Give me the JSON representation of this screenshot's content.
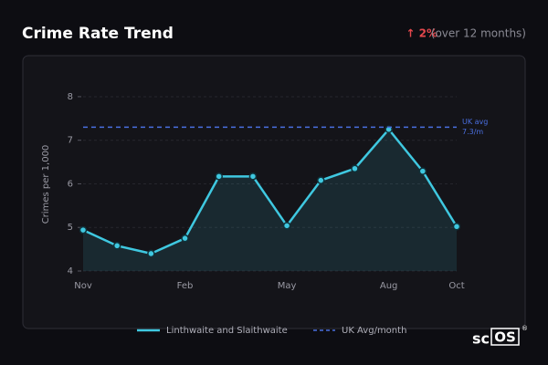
{
  "header": {
    "title": "Crime Rate Trend",
    "change": "↑ 2%",
    "period": "(over 12 months)"
  },
  "chart_data": {
    "type": "line",
    "y_label": "Crimes per 1,000",
    "categories": [
      "Nov",
      null,
      null,
      "Feb",
      null,
      null,
      "May",
      null,
      null,
      "Aug",
      null,
      "Oct"
    ],
    "series": [
      {
        "name": "Linthwaite and Slaithwaite",
        "color": "#3fc8e0",
        "values": [
          4.94,
          4.58,
          4.4,
          4.75,
          6.17,
          6.17,
          5.04,
          6.08,
          6.35,
          7.25,
          6.29,
          5.02
        ]
      }
    ],
    "reference": {
      "name": "UK Avg/month",
      "value": 7.3,
      "label": [
        "UK avg",
        "7.3/m"
      ],
      "color": "#4a6fe0"
    },
    "ylim": [
      4,
      8.25
    ],
    "yticks": [
      4,
      5,
      6,
      7,
      8
    ],
    "grid": true
  },
  "brand": {
    "text": "sc",
    "box": "OS",
    "mark": "®"
  }
}
